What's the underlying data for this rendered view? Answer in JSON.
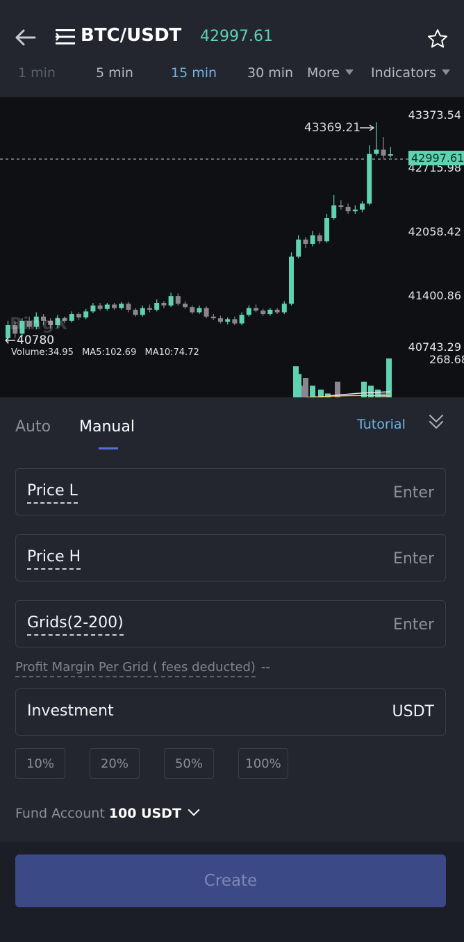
{
  "header": {
    "pair": "BTC/USDT",
    "last_price": "42997.61",
    "back_icon": "arrow-left-icon",
    "menu_icon": "list-menu-icon",
    "favorite_icon": "star-icon"
  },
  "intervals": {
    "items": [
      "1 min",
      "5 min",
      "15 min",
      "30 min"
    ],
    "selected": "15 min",
    "more": "More",
    "indicators": "Indicators"
  },
  "chart": {
    "price_labels": [
      "43373.54",
      "42715.98",
      "42058.42",
      "41400.86",
      "40743.29"
    ],
    "current_price": "42997.61",
    "peak_label": "43369.21",
    "low_label": "40780",
    "volume": "Volume:34.95",
    "ma5": "MA5:102.69",
    "ma10": "MA10:74.72",
    "volume_axis": "268.68",
    "watermark": "BingX"
  },
  "chart_data": {
    "type": "candlestick",
    "up_color": "#5fd2b0",
    "down_color": "#8a8590",
    "ylim": [
      40700,
      43500
    ],
    "candles": [
      {
        "o": 40850,
        "c": 41000,
        "h": 41050,
        "l": 40780
      },
      {
        "o": 41000,
        "c": 40900,
        "h": 41050,
        "l": 40850
      },
      {
        "o": 40900,
        "c": 41050,
        "h": 41080,
        "l": 40870
      },
      {
        "o": 41050,
        "c": 40980,
        "h": 41100,
        "l": 40950
      },
      {
        "o": 40980,
        "c": 41100,
        "h": 41150,
        "l": 40950
      },
      {
        "o": 41100,
        "c": 41050,
        "h": 41130,
        "l": 41000
      },
      {
        "o": 41050,
        "c": 41000,
        "h": 41080,
        "l": 40960
      },
      {
        "o": 41000,
        "c": 41080,
        "h": 41120,
        "l": 40970
      },
      {
        "o": 41080,
        "c": 41050,
        "h": 41100,
        "l": 41020
      },
      {
        "o": 41050,
        "c": 41130,
        "h": 41160,
        "l": 41030
      },
      {
        "o": 41130,
        "c": 41090,
        "h": 41150,
        "l": 41060
      },
      {
        "o": 41090,
        "c": 41160,
        "h": 41190,
        "l": 41070
      },
      {
        "o": 41160,
        "c": 41230,
        "h": 41260,
        "l": 41140
      },
      {
        "o": 41230,
        "c": 41190,
        "h": 41260,
        "l": 41170
      },
      {
        "o": 41190,
        "c": 41240,
        "h": 41260,
        "l": 41170
      },
      {
        "o": 41240,
        "c": 41200,
        "h": 41260,
        "l": 41180
      },
      {
        "o": 41200,
        "c": 41250,
        "h": 41270,
        "l": 41180
      },
      {
        "o": 41250,
        "c": 41180,
        "h": 41270,
        "l": 41150
      },
      {
        "o": 41180,
        "c": 41120,
        "h": 41200,
        "l": 41100
      },
      {
        "o": 41120,
        "c": 41200,
        "h": 41230,
        "l": 41100
      },
      {
        "o": 41200,
        "c": 41180,
        "h": 41240,
        "l": 41150
      },
      {
        "o": 41180,
        "c": 41260,
        "h": 41300,
        "l": 41160
      },
      {
        "o": 41260,
        "c": 41230,
        "h": 41280,
        "l": 41200
      },
      {
        "o": 41230,
        "c": 41340,
        "h": 41380,
        "l": 41210
      },
      {
        "o": 41340,
        "c": 41250,
        "h": 41370,
        "l": 41230
      },
      {
        "o": 41250,
        "c": 41210,
        "h": 41280,
        "l": 41190
      },
      {
        "o": 41210,
        "c": 41150,
        "h": 41230,
        "l": 41130
      },
      {
        "o": 41150,
        "c": 41200,
        "h": 41230,
        "l": 41130
      },
      {
        "o": 41200,
        "c": 41100,
        "h": 41220,
        "l": 41080
      },
      {
        "o": 41100,
        "c": 41080,
        "h": 41130,
        "l": 41060
      },
      {
        "o": 41080,
        "c": 41040,
        "h": 41110,
        "l": 41020
      },
      {
        "o": 41040,
        "c": 41070,
        "h": 41090,
        "l": 41010
      },
      {
        "o": 41070,
        "c": 41020,
        "h": 41100,
        "l": 41000
      },
      {
        "o": 41020,
        "c": 41120,
        "h": 41150,
        "l": 41000
      },
      {
        "o": 41120,
        "c": 41200,
        "h": 41230,
        "l": 41100
      },
      {
        "o": 41200,
        "c": 41170,
        "h": 41240,
        "l": 41150
      },
      {
        "o": 41170,
        "c": 41130,
        "h": 41190,
        "l": 41110
      },
      {
        "o": 41130,
        "c": 41180,
        "h": 41200,
        "l": 41110
      },
      {
        "o": 41180,
        "c": 41150,
        "h": 41200,
        "l": 41130
      },
      {
        "o": 41150,
        "c": 41250,
        "h": 41280,
        "l": 41130
      },
      {
        "o": 41250,
        "c": 41800,
        "h": 41850,
        "l": 41230
      },
      {
        "o": 41800,
        "c": 42000,
        "h": 42050,
        "l": 41780
      },
      {
        "o": 42000,
        "c": 41950,
        "h": 42030,
        "l": 41900
      },
      {
        "o": 41950,
        "c": 42050,
        "h": 42100,
        "l": 41920
      },
      {
        "o": 42050,
        "c": 41980,
        "h": 42080,
        "l": 41950
      },
      {
        "o": 41980,
        "c": 42250,
        "h": 42300,
        "l": 41960
      },
      {
        "o": 42250,
        "c": 42400,
        "h": 42520,
        "l": 42230
      },
      {
        "o": 42400,
        "c": 42380,
        "h": 42460,
        "l": 42350
      },
      {
        "o": 42380,
        "c": 42330,
        "h": 42420,
        "l": 42300
      },
      {
        "o": 42330,
        "c": 42350,
        "h": 42400,
        "l": 42300
      },
      {
        "o": 42350,
        "c": 42420,
        "h": 42450,
        "l": 42320
      },
      {
        "o": 42420,
        "c": 43000,
        "h": 43100,
        "l": 42400
      },
      {
        "o": 43000,
        "c": 43050,
        "h": 43369,
        "l": 42980
      },
      {
        "o": 43050,
        "c": 42980,
        "h": 43200,
        "l": 42950
      },
      {
        "o": 42980,
        "c": 42997,
        "h": 43080,
        "l": 42960
      }
    ],
    "volumes": [
      0.8,
      0.3,
      0.2,
      0.1,
      0.4,
      0.3,
      0.2,
      0.1,
      1.0,
      0.6,
      0.5,
      0.3,
      0.4
    ]
  },
  "tabs": {
    "auto": "Auto",
    "manual": "Manual",
    "tutorial": "Tutorial",
    "collapse_icon": "double-chevron-down-icon"
  },
  "form": {
    "price_l": {
      "label": "Price L",
      "placeholder": "Enter"
    },
    "price_h": {
      "label": "Price H",
      "placeholder": "Enter"
    },
    "grids": {
      "label": "Grids(2-200)",
      "placeholder": "Enter"
    },
    "profit_label": "Profit Margin Per Grid ( fees deducted)",
    "profit_value": "--",
    "investment": {
      "label": "Investment",
      "unit": "USDT"
    },
    "percentages": [
      "10%",
      "20%",
      "50%",
      "100%"
    ],
    "fund_label": "Fund Account",
    "fund_amount": "100 USDT"
  },
  "footer": {
    "create": "Create"
  }
}
